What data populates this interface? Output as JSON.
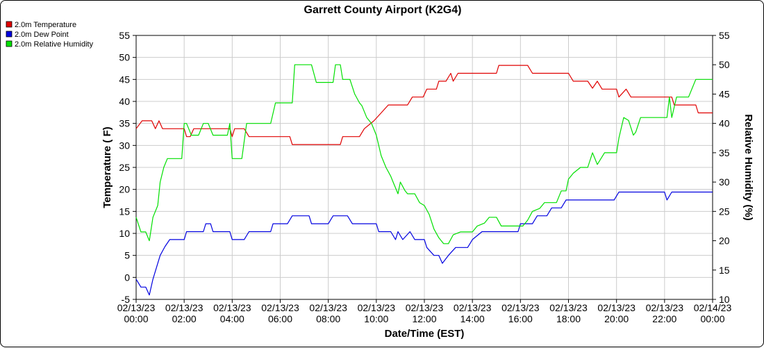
{
  "chart_data": {
    "type": "line",
    "title": "Garrett County Airport (K2G4)",
    "xlabel": "Date/Time (EST)",
    "ylabel_left": "Temperature ( F)",
    "ylabel_right": "Relative Humidity (%)",
    "xlim_hours": [
      0,
      24
    ],
    "ylim_left": [
      -5,
      55
    ],
    "ylim_right": [
      10,
      55
    ],
    "yticks_left": [
      -5,
      0,
      5,
      10,
      15,
      20,
      25,
      30,
      35,
      40,
      45,
      50,
      55
    ],
    "yticks_right": [
      10,
      15,
      20,
      25,
      30,
      35,
      40,
      45,
      50,
      55
    ],
    "xticks": [
      {
        "hour": 0,
        "date": "02/13/23",
        "time": "00:00"
      },
      {
        "hour": 2,
        "date": "02/13/23",
        "time": "02:00"
      },
      {
        "hour": 4,
        "date": "02/13/23",
        "time": "04:00"
      },
      {
        "hour": 6,
        "date": "02/13/23",
        "time": "06:00"
      },
      {
        "hour": 8,
        "date": "02/13/23",
        "time": "08:00"
      },
      {
        "hour": 10,
        "date": "02/13/23",
        "time": "10:00"
      },
      {
        "hour": 12,
        "date": "02/13/23",
        "time": "12:00"
      },
      {
        "hour": 14,
        "date": "02/13/23",
        "time": "14:00"
      },
      {
        "hour": 16,
        "date": "02/13/23",
        "time": "16:00"
      },
      {
        "hour": 18,
        "date": "02/13/23",
        "time": "18:00"
      },
      {
        "hour": 20,
        "date": "02/13/23",
        "time": "20:00"
      },
      {
        "hour": 22,
        "date": "02/13/23",
        "time": "22:00"
      },
      {
        "hour": 24,
        "date": "02/14/23",
        "time": "00:00"
      }
    ],
    "grid": true,
    "legend_position": "top-left",
    "series": [
      {
        "name": "2.0m Temperature",
        "color": "#e00000",
        "axis": "left",
        "points": [
          [
            0.0,
            33.8
          ],
          [
            0.25,
            35.6
          ],
          [
            0.5,
            35.6
          ],
          [
            0.65,
            35.6
          ],
          [
            0.8,
            33.8
          ],
          [
            0.95,
            35.6
          ],
          [
            1.1,
            33.8
          ],
          [
            1.5,
            33.8
          ],
          [
            2.0,
            33.8
          ],
          [
            2.1,
            32.0
          ],
          [
            2.25,
            32.0
          ],
          [
            2.4,
            33.8
          ],
          [
            3.0,
            33.8
          ],
          [
            3.5,
            33.8
          ],
          [
            3.9,
            33.8
          ],
          [
            4.0,
            32.0
          ],
          [
            4.1,
            33.8
          ],
          [
            4.5,
            33.8
          ],
          [
            4.7,
            32.0
          ],
          [
            5.5,
            32.0
          ],
          [
            6.4,
            32.0
          ],
          [
            6.5,
            30.2
          ],
          [
            7.5,
            30.2
          ],
          [
            8.5,
            30.2
          ],
          [
            8.6,
            32.0
          ],
          [
            9.3,
            32.0
          ],
          [
            9.5,
            33.8
          ],
          [
            9.9,
            35.6
          ],
          [
            10.2,
            37.4
          ],
          [
            10.5,
            39.2
          ],
          [
            11.0,
            39.2
          ],
          [
            11.3,
            39.2
          ],
          [
            11.5,
            41.0
          ],
          [
            11.95,
            41.0
          ],
          [
            12.1,
            42.8
          ],
          [
            12.5,
            42.8
          ],
          [
            12.6,
            44.6
          ],
          [
            12.9,
            44.6
          ],
          [
            13.1,
            46.4
          ],
          [
            13.2,
            44.6
          ],
          [
            13.4,
            46.4
          ],
          [
            14.0,
            46.4
          ],
          [
            14.5,
            46.4
          ],
          [
            15.0,
            46.4
          ],
          [
            15.1,
            48.2
          ],
          [
            15.5,
            48.2
          ],
          [
            16.0,
            48.2
          ],
          [
            16.3,
            48.2
          ],
          [
            16.5,
            46.4
          ],
          [
            17.0,
            46.4
          ],
          [
            17.5,
            46.4
          ],
          [
            18.0,
            46.4
          ],
          [
            18.2,
            44.6
          ],
          [
            18.8,
            44.6
          ],
          [
            19.0,
            43.0
          ],
          [
            19.2,
            44.6
          ],
          [
            19.4,
            42.8
          ],
          [
            20.0,
            42.8
          ],
          [
            20.1,
            41.0
          ],
          [
            20.4,
            42.8
          ],
          [
            20.6,
            41.0
          ],
          [
            21.5,
            41.0
          ],
          [
            22.0,
            41.0
          ],
          [
            22.3,
            41.0
          ],
          [
            22.4,
            39.2
          ],
          [
            22.8,
            39.2
          ],
          [
            23.3,
            39.2
          ],
          [
            23.4,
            37.4
          ],
          [
            24.0,
            37.4
          ]
        ]
      },
      {
        "name": "2.0m Dew Point",
        "color": "#0000e0",
        "axis": "left",
        "points": [
          [
            0.0,
            -0.4
          ],
          [
            0.2,
            -2.2
          ],
          [
            0.4,
            -2.2
          ],
          [
            0.55,
            -4.0
          ],
          [
            0.7,
            -0.4
          ],
          [
            1.0,
            5.0
          ],
          [
            1.2,
            7.0
          ],
          [
            1.4,
            8.6
          ],
          [
            2.0,
            8.6
          ],
          [
            2.1,
            10.4
          ],
          [
            2.5,
            10.4
          ],
          [
            2.8,
            10.4
          ],
          [
            2.9,
            12.2
          ],
          [
            3.1,
            12.2
          ],
          [
            3.2,
            10.4
          ],
          [
            3.5,
            10.4
          ],
          [
            3.9,
            10.4
          ],
          [
            4.0,
            8.6
          ],
          [
            4.5,
            8.6
          ],
          [
            4.7,
            10.4
          ],
          [
            5.5,
            10.4
          ],
          [
            5.6,
            10.4
          ],
          [
            5.7,
            12.2
          ],
          [
            6.3,
            12.2
          ],
          [
            6.5,
            14.0
          ],
          [
            7.2,
            14.0
          ],
          [
            7.3,
            12.2
          ],
          [
            8.0,
            12.2
          ],
          [
            8.2,
            14.0
          ],
          [
            8.8,
            14.0
          ],
          [
            9.0,
            12.2
          ],
          [
            9.5,
            12.2
          ],
          [
            10.0,
            12.2
          ],
          [
            10.1,
            10.4
          ],
          [
            10.5,
            10.4
          ],
          [
            10.6,
            10.4
          ],
          [
            10.8,
            8.6
          ],
          [
            10.9,
            10.4
          ],
          [
            11.1,
            8.6
          ],
          [
            11.4,
            10.4
          ],
          [
            11.6,
            8.6
          ],
          [
            12.0,
            8.6
          ],
          [
            12.1,
            6.8
          ],
          [
            12.4,
            5.0
          ],
          [
            12.6,
            5.0
          ],
          [
            12.75,
            3.2
          ],
          [
            13.0,
            5.0
          ],
          [
            13.3,
            6.8
          ],
          [
            13.8,
            6.8
          ],
          [
            14.0,
            8.6
          ],
          [
            14.4,
            10.4
          ],
          [
            15.0,
            10.4
          ],
          [
            15.5,
            10.4
          ],
          [
            15.9,
            10.4
          ],
          [
            16.0,
            12.2
          ],
          [
            16.5,
            12.2
          ],
          [
            16.7,
            14.0
          ],
          [
            17.1,
            14.0
          ],
          [
            17.3,
            15.8
          ],
          [
            17.7,
            15.8
          ],
          [
            17.9,
            17.6
          ],
          [
            18.5,
            17.6
          ],
          [
            19.0,
            17.6
          ],
          [
            19.9,
            17.6
          ],
          [
            20.1,
            19.4
          ],
          [
            21.0,
            19.4
          ],
          [
            21.5,
            19.4
          ],
          [
            22.0,
            19.4
          ],
          [
            22.1,
            17.6
          ],
          [
            22.3,
            19.4
          ],
          [
            23.0,
            19.4
          ],
          [
            24.0,
            19.4
          ]
        ]
      },
      {
        "name": "2.0m Relative Humidity",
        "color": "#00e000",
        "axis": "right",
        "points": [
          [
            0.0,
            24.0
          ],
          [
            0.2,
            21.5
          ],
          [
            0.4,
            21.5
          ],
          [
            0.55,
            20.0
          ],
          [
            0.7,
            24.0
          ],
          [
            0.9,
            26.0
          ],
          [
            1.0,
            30.0
          ],
          [
            1.15,
            32.5
          ],
          [
            1.3,
            34.0
          ],
          [
            1.5,
            34.0
          ],
          [
            1.9,
            34.0
          ],
          [
            2.0,
            40.0
          ],
          [
            2.1,
            40.0
          ],
          [
            2.3,
            38.0
          ],
          [
            2.6,
            38.0
          ],
          [
            2.8,
            40.0
          ],
          [
            3.0,
            40.0
          ],
          [
            3.2,
            38.0
          ],
          [
            3.5,
            38.0
          ],
          [
            3.8,
            38.0
          ],
          [
            3.9,
            40.0
          ],
          [
            4.0,
            34.0
          ],
          [
            4.4,
            34.0
          ],
          [
            4.6,
            40.0
          ],
          [
            5.0,
            40.0
          ],
          [
            5.5,
            40.0
          ],
          [
            5.6,
            40.0
          ],
          [
            5.8,
            43.5
          ],
          [
            6.0,
            43.5
          ],
          [
            6.5,
            43.5
          ],
          [
            6.6,
            50.0
          ],
          [
            7.3,
            50.0
          ],
          [
            7.5,
            47.0
          ],
          [
            8.0,
            47.0
          ],
          [
            8.2,
            47.0
          ],
          [
            8.3,
            50.0
          ],
          [
            8.5,
            50.0
          ],
          [
            8.6,
            47.5
          ],
          [
            8.9,
            47.5
          ],
          [
            9.1,
            45.0
          ],
          [
            9.3,
            43.5
          ],
          [
            9.4,
            43.0
          ],
          [
            9.6,
            41.0
          ],
          [
            9.8,
            40.0
          ],
          [
            10.0,
            38.0
          ],
          [
            10.2,
            34.5
          ],
          [
            10.4,
            32.5
          ],
          [
            10.6,
            31.0
          ],
          [
            10.7,
            30.0
          ],
          [
            10.9,
            28.0
          ],
          [
            11.0,
            30.0
          ],
          [
            11.2,
            28.5
          ],
          [
            11.3,
            28.0
          ],
          [
            11.5,
            28.0
          ],
          [
            11.6,
            28.0
          ],
          [
            11.8,
            26.5
          ],
          [
            12.0,
            26.0
          ],
          [
            12.2,
            24.5
          ],
          [
            12.4,
            22.0
          ],
          [
            12.6,
            20.5
          ],
          [
            12.8,
            19.5
          ],
          [
            13.0,
            19.5
          ],
          [
            13.2,
            21.0
          ],
          [
            13.5,
            21.5
          ],
          [
            14.0,
            21.5
          ],
          [
            14.2,
            22.5
          ],
          [
            14.5,
            23.0
          ],
          [
            14.7,
            24.0
          ],
          [
            15.0,
            24.0
          ],
          [
            15.2,
            22.5
          ],
          [
            15.5,
            22.5
          ],
          [
            15.9,
            22.5
          ],
          [
            16.1,
            22.5
          ],
          [
            16.3,
            23.5
          ],
          [
            16.5,
            25.0
          ],
          [
            16.8,
            25.5
          ],
          [
            17.0,
            26.5
          ],
          [
            17.5,
            26.5
          ],
          [
            17.7,
            28.5
          ],
          [
            17.9,
            28.5
          ],
          [
            18.0,
            30.5
          ],
          [
            18.2,
            31.5
          ],
          [
            18.5,
            32.5
          ],
          [
            18.8,
            32.5
          ],
          [
            19.0,
            35.0
          ],
          [
            19.2,
            33.0
          ],
          [
            19.5,
            35.0
          ],
          [
            20.0,
            35.0
          ],
          [
            20.1,
            37.5
          ],
          [
            20.3,
            41.0
          ],
          [
            20.5,
            40.5
          ],
          [
            20.7,
            38.0
          ],
          [
            20.8,
            38.5
          ],
          [
            21.0,
            41.0
          ],
          [
            21.5,
            41.0
          ],
          [
            22.0,
            41.0
          ],
          [
            22.1,
            41.0
          ],
          [
            22.2,
            44.5
          ],
          [
            22.3,
            41.0
          ],
          [
            22.5,
            44.5
          ],
          [
            22.8,
            44.5
          ],
          [
            23.0,
            44.5
          ],
          [
            23.3,
            47.5
          ],
          [
            23.5,
            47.5
          ],
          [
            24.0,
            47.5
          ]
        ]
      }
    ]
  }
}
